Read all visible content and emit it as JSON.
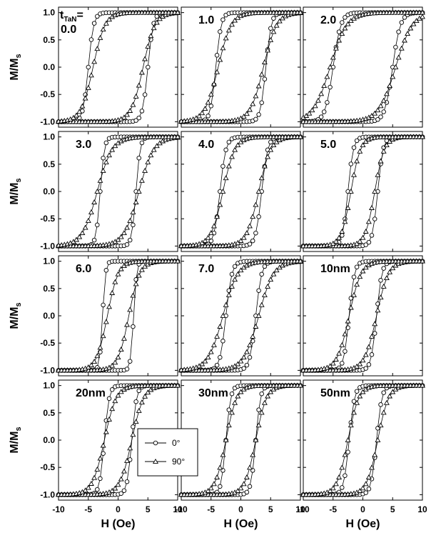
{
  "chart_data": {
    "type": "line",
    "layout": "4x3 grid of hysteresis loop panels",
    "xlabel": "H (Oe)",
    "ylabel": "M/M",
    "ylabel_sub": "s",
    "xlim": [
      -10,
      10
    ],
    "ylim": [
      -1.1,
      1.1
    ],
    "x_ticks": [
      -10,
      -5,
      0,
      5,
      10
    ],
    "y_ticks": [
      -1.0,
      -0.5,
      0.0,
      0.5,
      1.0
    ],
    "x_tick_labels": [
      "-10",
      "-5",
      "0",
      "5",
      "10"
    ],
    "y_tick_labels": [
      "-1.0",
      "-0.5",
      "0.0",
      "0.5",
      "1.0"
    ],
    "first_panel_prefix": "t",
    "first_panel_prefix_sub": "TaN",
    "first_panel_prefix_suffix": "=",
    "legend": {
      "position": "center of bottom row",
      "entries": [
        {
          "label": "0°",
          "marker": "circle"
        },
        {
          "label": "90°",
          "marker": "triangle"
        }
      ]
    },
    "series_style": {
      "color": "#000000",
      "markers": [
        "circle",
        "triangle"
      ]
    },
    "panels": [
      {
        "label": "0.0",
        "series": [
          {
            "marker": "circle",
            "hc": 5.0,
            "width": 0.9
          },
          {
            "marker": "triangle",
            "hc": 4.2,
            "width": 2.0
          }
        ]
      },
      {
        "label": "1.0",
        "series": [
          {
            "marker": "circle",
            "hc": 4.2,
            "width": 0.9
          },
          {
            "marker": "triangle",
            "hc": 3.8,
            "width": 2.2
          }
        ]
      },
      {
        "label": "2.0",
        "series": [
          {
            "marker": "circle",
            "hc": 5.0,
            "width": 1.3
          },
          {
            "marker": "triangle",
            "hc": 5.5,
            "width": 2.8
          }
        ]
      },
      {
        "label": "3.0",
        "series": [
          {
            "marker": "circle",
            "hc": 3.0,
            "width": 0.7
          },
          {
            "marker": "triangle",
            "hc": 3.5,
            "width": 2.5
          }
        ]
      },
      {
        "label": "4.0",
        "series": [
          {
            "marker": "circle",
            "hc": 3.5,
            "width": 1.0
          },
          {
            "marker": "triangle",
            "hc": 3.0,
            "width": 2.0
          }
        ]
      },
      {
        "label": "5.0",
        "series": [
          {
            "marker": "circle",
            "hc": 2.5,
            "width": 0.9
          },
          {
            "marker": "triangle",
            "hc": 2.0,
            "width": 1.6
          }
        ]
      },
      {
        "label": "6.0",
        "series": [
          {
            "marker": "circle",
            "hc": 2.6,
            "width": 0.5
          },
          {
            "marker": "triangle",
            "hc": 1.8,
            "width": 1.8
          }
        ]
      },
      {
        "label": "7.0",
        "series": [
          {
            "marker": "circle",
            "hc": 2.5,
            "width": 1.0
          },
          {
            "marker": "triangle",
            "hc": 3.0,
            "width": 2.5
          }
        ]
      },
      {
        "label": "10nm",
        "series": [
          {
            "marker": "circle",
            "hc": 2.3,
            "width": 0.9
          },
          {
            "marker": "triangle",
            "hc": 2.3,
            "width": 2.0
          }
        ]
      },
      {
        "label": "20nm",
        "series": [
          {
            "marker": "circle",
            "hc": 2.3,
            "width": 0.8
          },
          {
            "marker": "triangle",
            "hc": 2.3,
            "width": 2.0
          }
        ]
      },
      {
        "label": "30nm",
        "series": [
          {
            "marker": "circle",
            "hc": 2.5,
            "width": 0.8
          },
          {
            "marker": "triangle",
            "hc": 2.5,
            "width": 1.8
          }
        ]
      },
      {
        "label": "50nm",
        "series": [
          {
            "marker": "circle",
            "hc": 2.3,
            "width": 0.9
          },
          {
            "marker": "triangle",
            "hc": 2.5,
            "width": 1.8
          }
        ]
      }
    ]
  }
}
